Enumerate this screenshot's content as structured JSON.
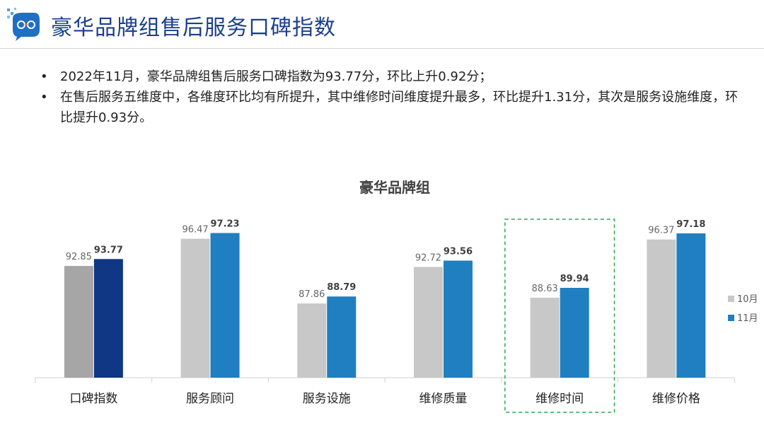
{
  "header": {
    "title": "豪华品牌组售后服务口碑指数"
  },
  "bullets": [
    "2022年11月，豪华品牌组售后服务口碑指数为93.77分，环比上升0.92分；",
    "在售后服务五维度中，各维度环比均有所提升，其中维修时间维度提升最多，环比提升1.31分，其次是服务设施维度，环比提升0.93分。"
  ],
  "bullet_mark": "•",
  "chart_data": {
    "type": "bar",
    "title": "豪华品牌组",
    "categories": [
      "口碑指数",
      "服务顾问",
      "服务设施",
      "维修质量",
      "维修时间",
      "维修价格"
    ],
    "series": [
      {
        "name": "10月",
        "values": [
          92.85,
          96.47,
          87.86,
          92.72,
          88.63,
          96.37
        ],
        "color": "#c8c8c8"
      },
      {
        "name": "11月",
        "values": [
          93.77,
          97.23,
          88.79,
          93.56,
          89.94,
          97.18
        ],
        "color": "#1f7fc0"
      }
    ],
    "highlight_colors": {
      "10月": "#a6a6a6",
      "11月": "#0f3784"
    },
    "highlight_first_category": true,
    "boxed_category": "维修时间",
    "ylim": [
      78,
      100
    ],
    "grid": false,
    "legend_position": "right"
  }
}
